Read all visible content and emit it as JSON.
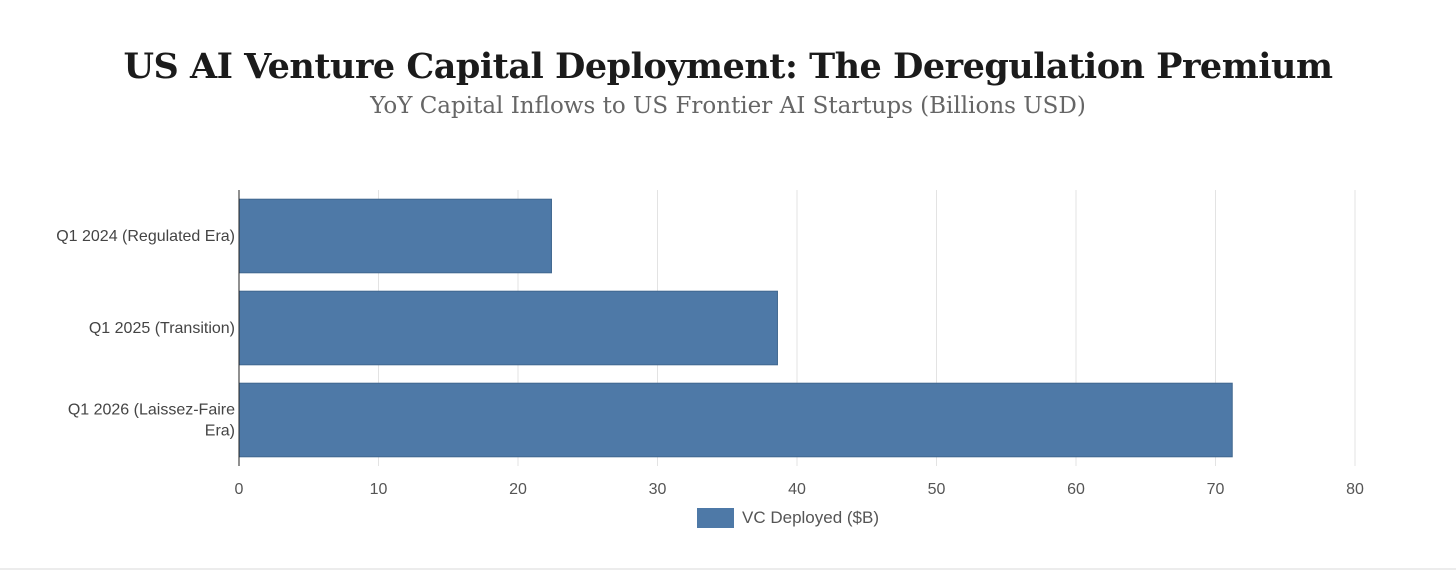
{
  "chart_data": {
    "type": "bar",
    "orientation": "horizontal",
    "title": "US AI Venture Capital Deployment: The Deregulation Premium",
    "subtitle": "YoY Capital Inflows to US Frontier AI Startups (Billions USD)",
    "categories": [
      [
        "Q1 2024 (Regulated Era)"
      ],
      [
        "Q1 2025 (Transition)"
      ],
      [
        "Q1 2026 (Laissez-Faire",
        "Era)"
      ]
    ],
    "series": [
      {
        "name": "VC Deployed ($B)",
        "values": [
          22.4,
          38.6,
          71.2
        ],
        "color": "#4e79a7"
      }
    ],
    "xlim": [
      0,
      80
    ],
    "x_ticks": [
      0,
      10,
      20,
      30,
      40,
      50,
      60,
      70,
      80
    ],
    "grid": true,
    "legend_position": "bottom-center"
  }
}
